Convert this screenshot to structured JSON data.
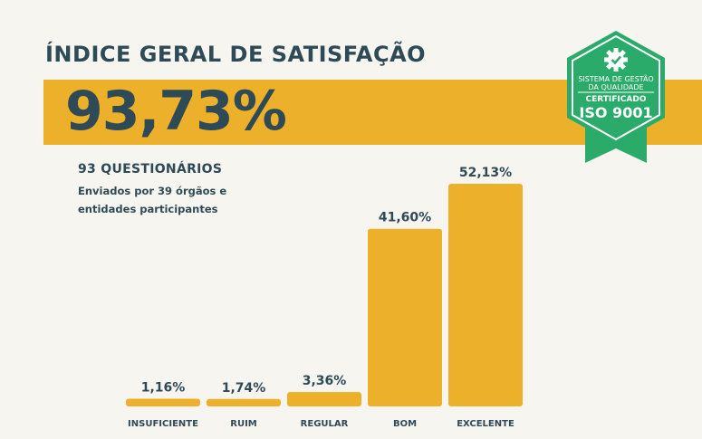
{
  "header": {
    "title": "ÍNDICE GERAL DE SATISFAÇÃO",
    "big_value": "93,73%"
  },
  "survey": {
    "count": "93 QUESTIONÁRIOS",
    "description": "Enviados por 39 órgãos e entidades participantes"
  },
  "badge": {
    "line1": "SISTEMA DE GESTÃO",
    "line2": "DA QUALIDADE",
    "line3": "CERTIFICADO",
    "line4": "ISO 9001",
    "icon": "gear-check-icon"
  },
  "colors": {
    "accent": "#edb02a",
    "text": "#2f4a57",
    "background": "#f7f5f0",
    "badge_green": "#2bab6a"
  },
  "chart_data": {
    "type": "bar",
    "categories": [
      "INSUFICIENTE",
      "RUIM",
      "REGULAR",
      "BOM",
      "EXCELENTE"
    ],
    "values": [
      1.16,
      1.74,
      3.36,
      41.6,
      52.13
    ],
    "value_labels": [
      "1,16%",
      "1,74%",
      "3,36%",
      "41,60%",
      "52,13%"
    ],
    "ylim": [
      0,
      52.13
    ],
    "grid": false,
    "legend": "none"
  }
}
